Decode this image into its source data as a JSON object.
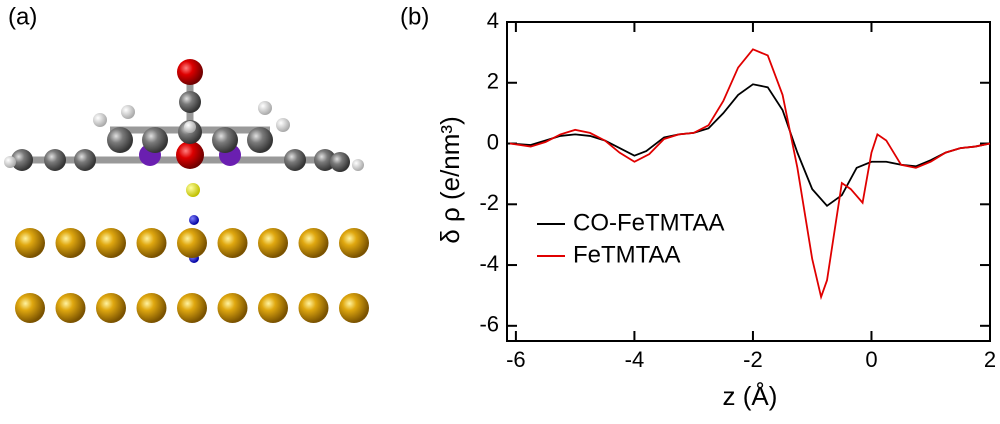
{
  "panel_labels": [
    "(a)",
    "(b)"
  ],
  "chart_data": {
    "type": "line",
    "x_label": "z (Å)",
    "y_label": "δ ρ (e/nm³)",
    "xlim": [
      -6.15,
      2
    ],
    "ylim": [
      -6.5,
      4
    ],
    "xticks": [
      -6,
      -4,
      -2,
      0,
      2
    ],
    "yticks": [
      -6,
      -4,
      -2,
      0,
      2,
      4
    ],
    "grid": false,
    "legend": "lower left",
    "series": [
      {
        "name": "CO-FeTMTAA",
        "color": "#000000",
        "x": [
          -6.1,
          -5.75,
          -5.5,
          -5.25,
          -5,
          -4.75,
          -4.5,
          -4.25,
          -4,
          -3.8,
          -3.5,
          -3.25,
          -3,
          -2.75,
          -2.5,
          -2.25,
          -2,
          -1.75,
          -1.5,
          -1.25,
          -1,
          -0.75,
          -0.5,
          -0.25,
          0,
          0.25,
          0.5,
          0.75,
          1,
          1.25,
          1.5,
          1.75,
          2
        ],
        "values": [
          0,
          -0.05,
          0.1,
          0.25,
          0.3,
          0.25,
          0.1,
          -0.15,
          -0.4,
          -0.25,
          0.2,
          0.3,
          0.35,
          0.5,
          1.0,
          1.6,
          1.95,
          1.85,
          1.1,
          -0.3,
          -1.5,
          -2.05,
          -1.7,
          -0.8,
          -0.6,
          -0.6,
          -0.7,
          -0.75,
          -0.55,
          -0.3,
          -0.15,
          -0.1,
          0
        ]
      },
      {
        "name": "FeTMTAA",
        "color": "#e00000",
        "x": [
          -6.1,
          -5.75,
          -5.5,
          -5.25,
          -5,
          -4.75,
          -4.5,
          -4.25,
          -4,
          -3.75,
          -3.5,
          -3.25,
          -3,
          -2.75,
          -2.5,
          -2.25,
          -2,
          -1.75,
          -1.5,
          -1.25,
          -1,
          -0.85,
          -0.75,
          -0.5,
          -0.35,
          -0.15,
          0,
          0.1,
          0.25,
          0.5,
          0.75,
          1,
          1.25,
          1.5,
          1.75,
          2
        ],
        "values": [
          0,
          -0.1,
          0.05,
          0.3,
          0.45,
          0.35,
          0.1,
          -0.3,
          -0.6,
          -0.35,
          0.15,
          0.3,
          0.35,
          0.6,
          1.4,
          2.5,
          3.1,
          2.9,
          1.6,
          -0.8,
          -3.8,
          -5.05,
          -4.5,
          -1.3,
          -1.5,
          -1.95,
          -0.3,
          0.3,
          0.1,
          -0.7,
          -0.8,
          -0.6,
          -0.3,
          -0.15,
          -0.1,
          0
        ]
      }
    ]
  }
}
